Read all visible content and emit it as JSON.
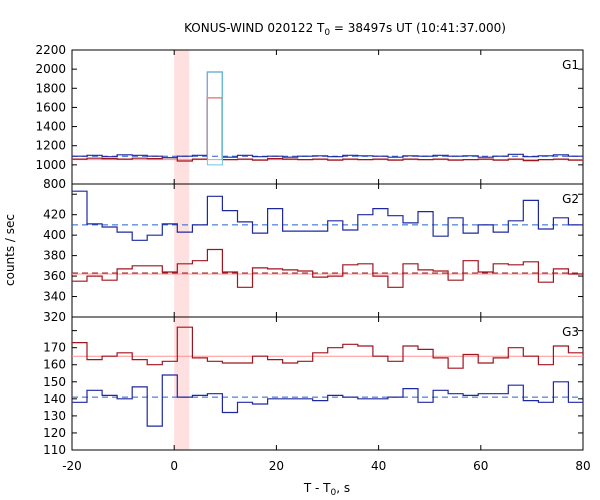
{
  "chart_data": {
    "type": "line",
    "title": "KONUS-WIND 020122 T",
    "title_sub": "0",
    "title_rest": " = 38497s UT (10:41:37.000)",
    "xlabel": "T - T",
    "xlabel_sub": "0",
    "xlabel_rest": ", s",
    "ylabel": "counts / sec",
    "xlim": [
      -20,
      80
    ],
    "x_ticks": [
      -20,
      0,
      20,
      40,
      60,
      80
    ],
    "step": 2.944,
    "highlight": {
      "x0": 0,
      "x1": 2.944,
      "color": "#ffe0e0"
    },
    "colors": {
      "red": "#a0141e",
      "blue": "#1e28a0",
      "cyan": "#6ec8dc",
      "pink": "#ff9090",
      "dash": "#2060d0"
    },
    "panels": [
      {
        "label": "G1",
        "ylim": [
          800,
          2200
        ],
        "y_ticks": [
          800,
          1000,
          1200,
          1400,
          1600,
          1800,
          2000,
          2200
        ],
        "series": [
          {
            "color": "blue",
            "values": [
              1090,
              1100,
              1085,
              1105,
              1100,
              1090,
              1075,
              1090,
              1100,
              1970,
              1080,
              1100,
              1085,
              1090,
              1080,
              1090,
              1095,
              1085,
              1100,
              1095,
              1090,
              1080,
              1095,
              1090,
              1100,
              1090,
              1095,
              1080,
              1090,
              1110,
              1085,
              1095,
              1105,
              1090,
              1080,
              1095,
              1085,
              1100,
              1120,
              1080,
              1095,
              1090,
              1075,
              1095
            ]
          },
          {
            "color": "red",
            "values": [
              1060,
              1070,
              1065,
              1060,
              1070,
              1065,
              1075,
              1040,
              1060,
              1700,
              1055,
              1060,
              1050,
              1065,
              1060,
              1055,
              1060,
              1050,
              1060,
              1055,
              1060,
              1050,
              1060,
              1055,
              1060,
              1050,
              1055,
              1060,
              1050,
              1060,
              1045,
              1055,
              1060,
              1050,
              1045,
              1060,
              1050,
              1055,
              1050,
              1060,
              1050,
              1055,
              1045,
              1060
            ]
          }
        ],
        "levels": [
          {
            "color": "pink",
            "value": 1055,
            "style": "solid"
          },
          {
            "color": "dash",
            "value": 1090,
            "style": "dashed"
          }
        ]
      },
      {
        "label": "G2",
        "ylim": [
          320,
          450
        ],
        "y_ticks": [
          320,
          340,
          360,
          380,
          400,
          420,
          440
        ],
        "series": [
          {
            "color": "blue",
            "values": [
              443,
              411,
              408,
              403,
              395,
              400,
              411,
              403,
              410,
              438,
              424,
              413,
              402,
              426,
              404,
              404,
              404,
              414,
              405,
              420,
              426,
              419,
              412,
              423,
              399,
              417,
              402,
              410,
              403,
              414,
              434,
              406,
              417,
              410,
              401,
              409,
              409,
              413,
              411,
              413,
              413,
              407,
              403,
              374,
              416
            ]
          },
          {
            "color": "red",
            "values": [
              355,
              360,
              356,
              367,
              370,
              370,
              364,
              372,
              375,
              386,
              364,
              349,
              368,
              367,
              366,
              365,
              359,
              360,
              371,
              372,
              360,
              349,
              372,
              366,
              365,
              356,
              375,
              364,
              372,
              371,
              374,
              354,
              367,
              362,
              359,
              368,
              366,
              368,
              364,
              348,
              367,
              367,
              356,
              365,
              362
            ]
          }
        ],
        "levels": [
          {
            "color": "dash",
            "value": 410,
            "style": "dashed"
          },
          {
            "color": "red",
            "value": 363,
            "style": "dashed"
          },
          {
            "color": "pink",
            "value": 362,
            "style": "solid"
          }
        ]
      },
      {
        "label": "G3",
        "ylim": [
          110,
          188
        ],
        "y_ticks": [
          110,
          120,
          130,
          140,
          150,
          160,
          170,
          180
        ],
        "series": [
          {
            "color": "red",
            "values": [
              173,
              163,
              165,
              167,
              163,
              160,
              162,
              182,
              164,
              162,
              161,
              161,
              165,
              163,
              161,
              162,
              167,
              170,
              172,
              171,
              165,
              162,
              171,
              169,
              164,
              158,
              166,
              161,
              164,
              170,
              165,
              160,
              171,
              167,
              164,
              171,
              154,
              147,
              167,
              172,
              170,
              168,
              161,
              156
            ]
          },
          {
            "color": "blue",
            "values": [
              138,
              145,
              142,
              140,
              147,
              124,
              154,
              141,
              142,
              143,
              132,
              138,
              137,
              140,
              140,
              140,
              139,
              142,
              141,
              140,
              140,
              141,
              146,
              138,
              145,
              143,
              142,
              143,
              143,
              148,
              139,
              138,
              150,
              138,
              144,
              140,
              141,
              143,
              152,
              140,
              137,
              138,
              138,
              148
            ]
          }
        ],
        "levels": [
          {
            "color": "pink",
            "value": 165,
            "style": "solid"
          },
          {
            "color": "dash",
            "value": 141,
            "style": "dashed"
          }
        ]
      }
    ]
  }
}
